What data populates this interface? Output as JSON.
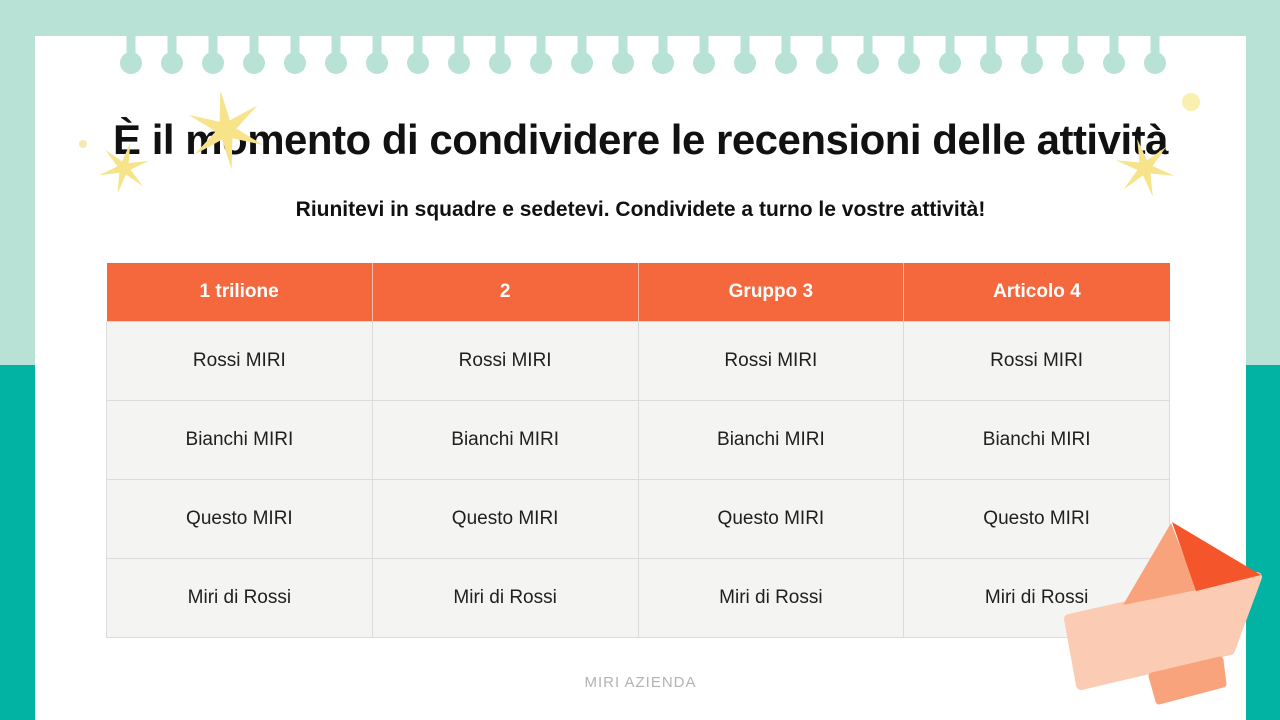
{
  "slide": {
    "title": "È il momento di condividere le recensioni delle attività",
    "subtitle": "Riunitevi in squadre e sedetevi. Condividete a turno le vostre attività!",
    "footer": "MIRI AZIENDA"
  },
  "table": {
    "headers": [
      "1 trilione",
      "2",
      "Gruppo 3",
      "Articolo 4"
    ],
    "rows": [
      [
        "Rossi MIRI",
        "Rossi MIRI",
        "Rossi MIRI",
        "Rossi MIRI"
      ],
      [
        "Bianchi MIRI",
        "Bianchi MIRI",
        "Bianchi MIRI",
        "Bianchi MIRI"
      ],
      [
        "Questo MIRI",
        "Questo MIRI",
        "Questo MIRI",
        "Questo MIRI"
      ],
      [
        "Miri di Rossi",
        "Miri di Rossi",
        "Miri di Rossi",
        "Miri di Rossi"
      ]
    ]
  },
  "decor": {
    "pin_icon": "pin-icon",
    "sparkle_icon": "sparkle-icon",
    "plane_icon": "paper-plane-icon",
    "pin_count": 26
  },
  "colors": {
    "mint": "#b8e2d6",
    "teal": "#02b3a3",
    "orange": "#f5683d",
    "plane_dark": "#f4552b",
    "plane_mid": "#f9a37d",
    "plane_light": "#fbccb3",
    "star_yellow": "#f6e38a",
    "star_pale": "#f8eda6",
    "cell_bg": "#f4f4f2",
    "cell_border": "#dbdbdb",
    "text_dark": "#111111",
    "footer_gray": "#b3b3b3"
  }
}
